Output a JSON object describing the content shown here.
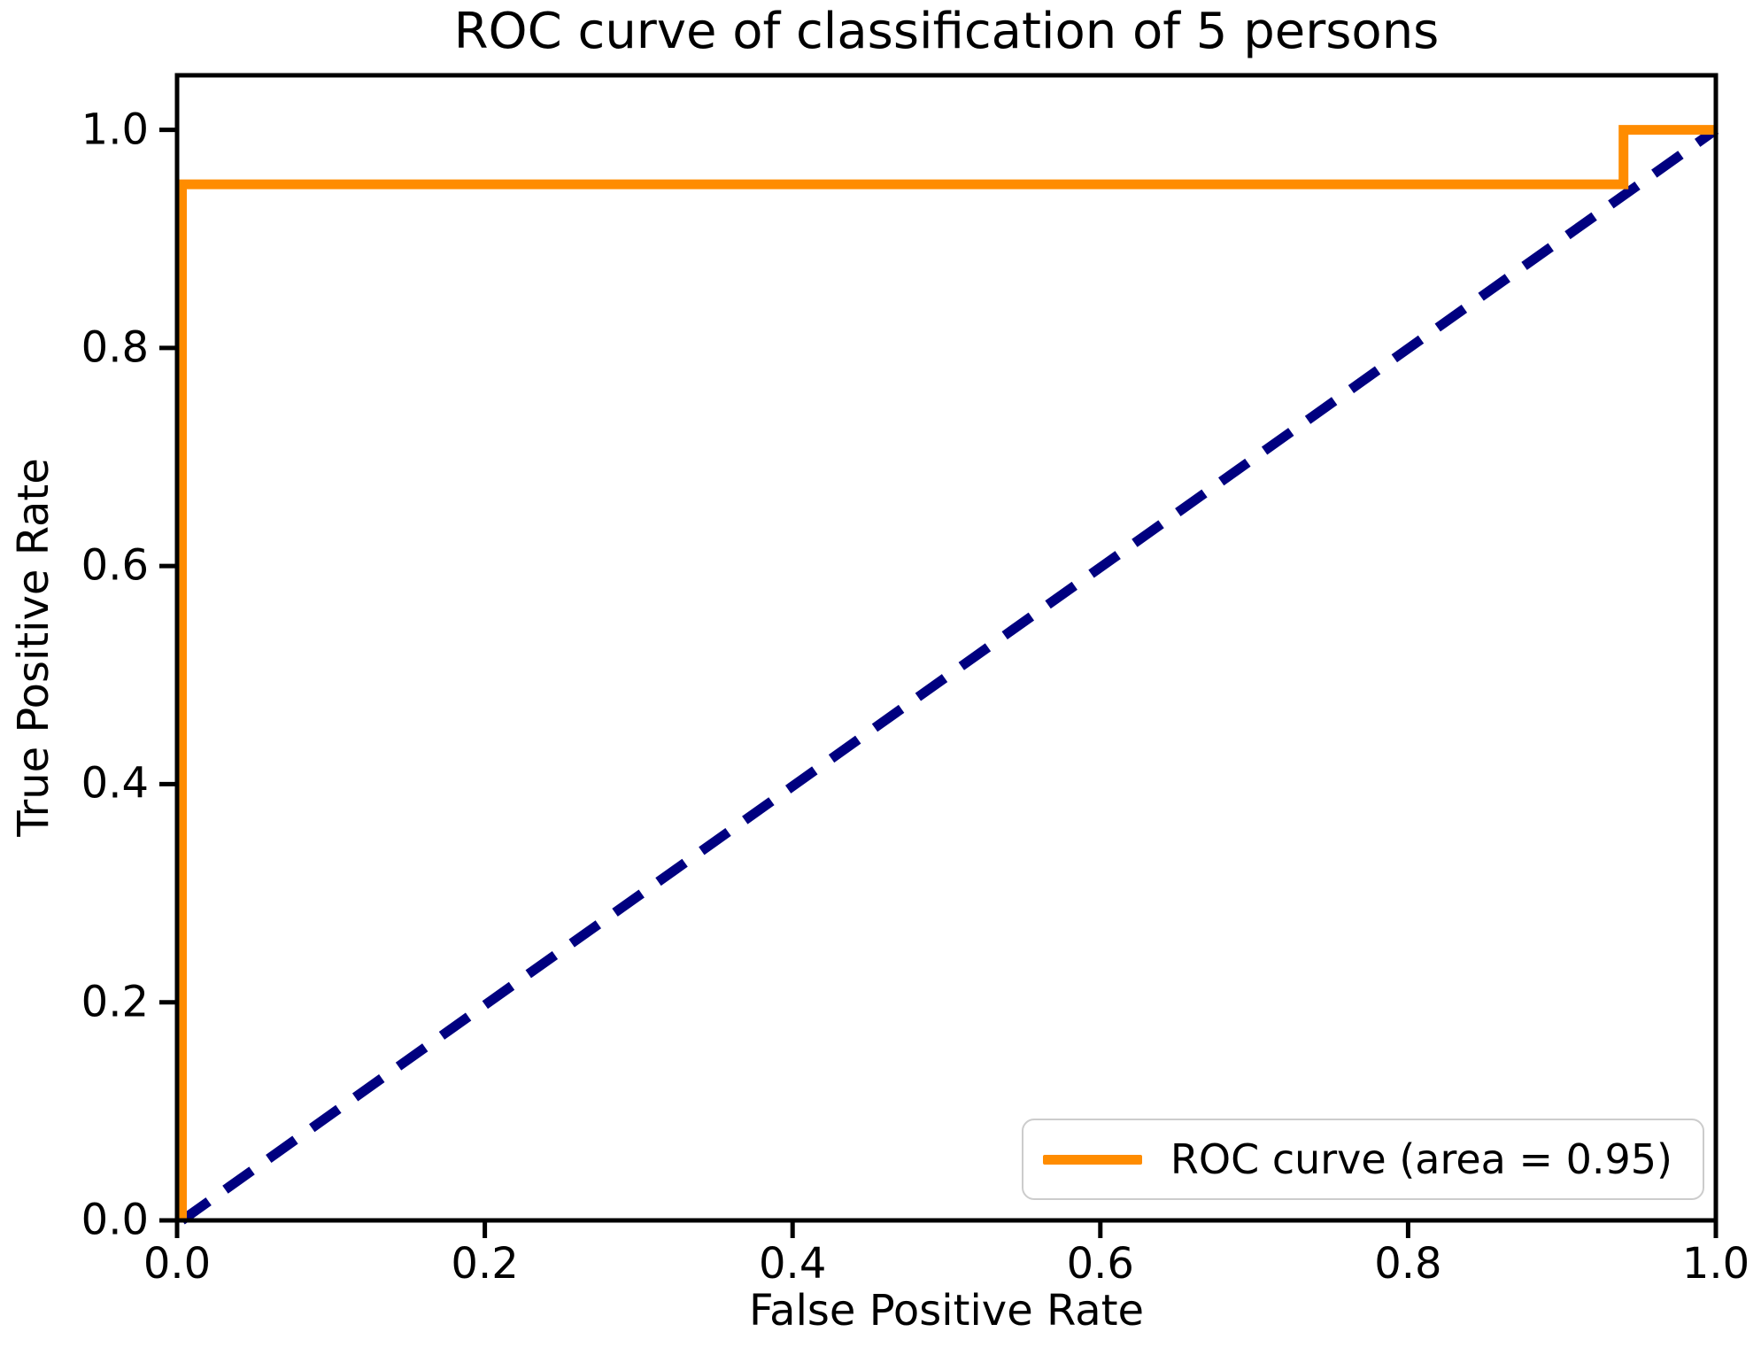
{
  "chart_data": {
    "type": "line",
    "title": "ROC curve of classification of 5 persons",
    "xlabel": "False Positive Rate",
    "ylabel": "True Positive Rate",
    "xlim": [
      0.0,
      1.0
    ],
    "ylim": [
      0.0,
      1.05
    ],
    "x_tick_values": [
      0.0,
      0.2,
      0.4,
      0.6,
      0.8,
      1.0
    ],
    "x_tick_labels": [
      "0.0",
      "0.2",
      "0.4",
      "0.6",
      "0.8",
      "1.0"
    ],
    "y_tick_values": [
      0.0,
      0.2,
      0.4,
      0.6,
      0.8,
      1.0
    ],
    "y_tick_labels": [
      "0.0",
      "0.2",
      "0.4",
      "0.6",
      "0.8",
      "1.0"
    ],
    "grid": false,
    "legend": {
      "position": "lower right",
      "items": [
        {
          "label": "ROC curve (area = 0.95)",
          "color": "#ff8c00",
          "style": "solid"
        }
      ]
    },
    "series": [
      {
        "name": "chance-diagonal",
        "color": "#000080",
        "style": "dashed",
        "points": [
          [
            0.0,
            0.0
          ],
          [
            1.0,
            1.0
          ]
        ]
      },
      {
        "name": "roc-curve",
        "color": "#ff8c00",
        "style": "solid",
        "area": 0.95,
        "points": [
          [
            0.0,
            0.0
          ],
          [
            0.0,
            0.95
          ],
          [
            0.94,
            0.95
          ],
          [
            0.94,
            1.0
          ],
          [
            1.0,
            1.0
          ]
        ]
      }
    ]
  },
  "colors": {
    "background": "#ffffff",
    "spine": "#000000",
    "tick": "#000000",
    "text": "#000000",
    "legend_border": "#cccccc",
    "legend_background": "#ffffff"
  }
}
